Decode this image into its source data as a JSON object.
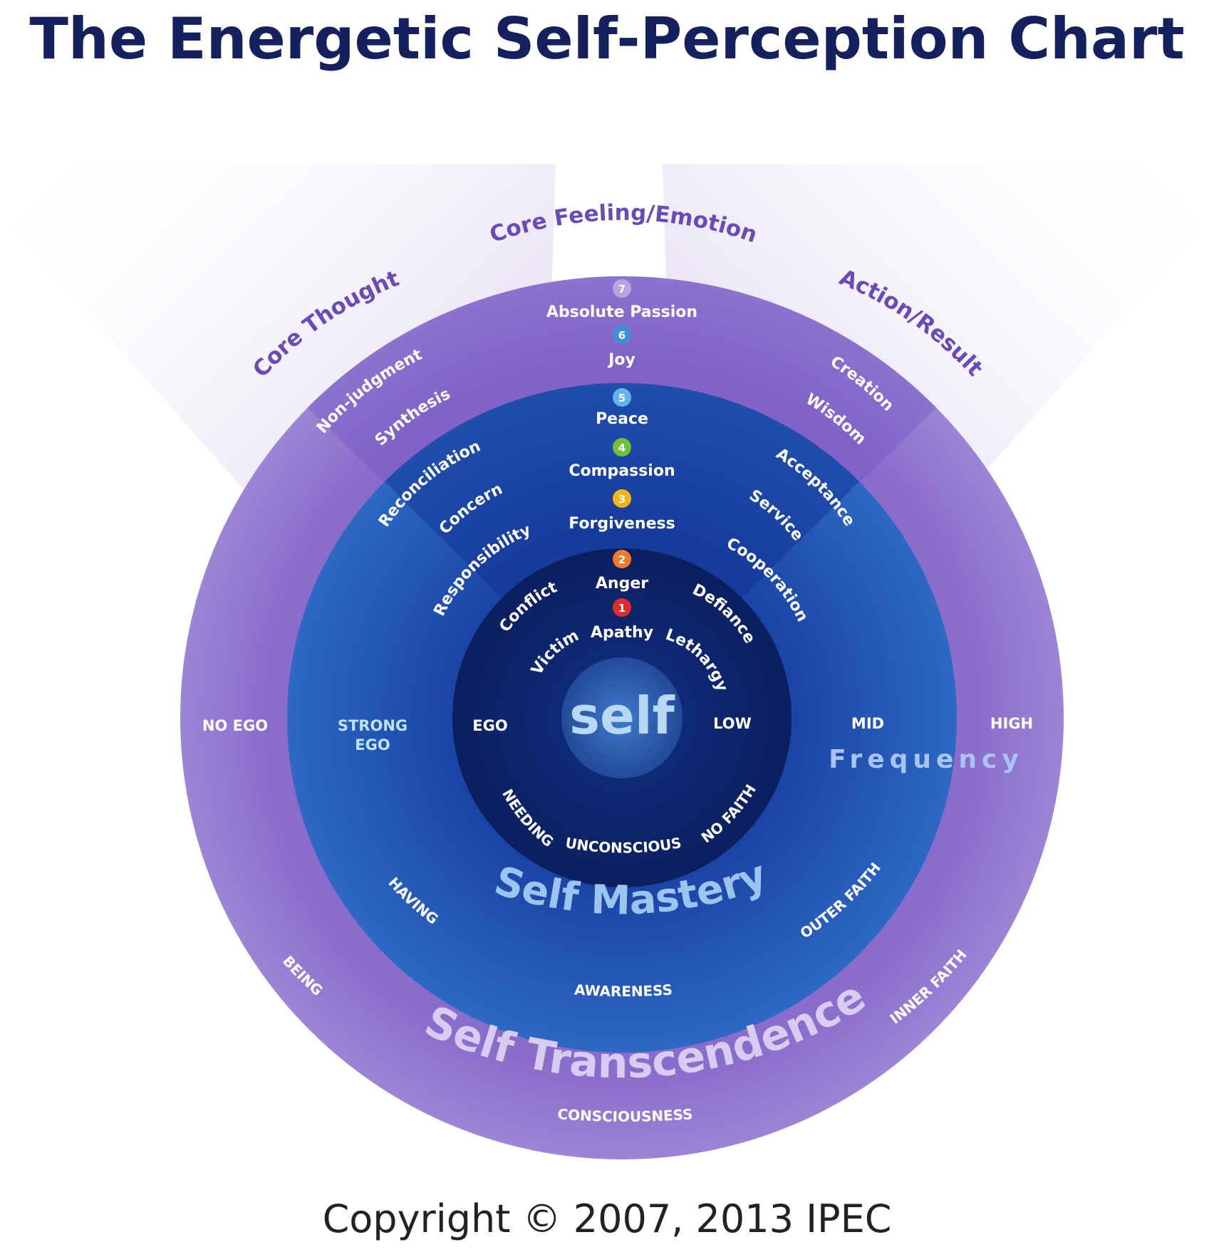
{
  "title": "The Energetic Self-Perception Chart",
  "copyright": "Copyright © 2007, 2013 IPEC",
  "colors": {
    "title": "#15205e",
    "outer_ring": "#9a7fd2",
    "middle_ring": "#2a5cb8",
    "inner_ring": "#0d2468",
    "header_text": "#6a4ab8",
    "light_text": "#ffffff",
    "cyan_text": "#bfe3ff",
    "level_1": "#e02b2b",
    "level_2": "#f07a2a",
    "level_3": "#f2b61b",
    "level_4": "#6ec23a",
    "level_5": "#62b4ea",
    "level_6": "#3f8fd6",
    "level_7": "#b6a6e0"
  },
  "headers": {
    "core_thought": "Core Thought",
    "core_feeling": "Core Feeling/Emotion",
    "action_result": "Action/Result"
  },
  "levels": [
    {
      "number": "1",
      "emotion": "Apathy",
      "thought": "Victim",
      "action": "Lethargy"
    },
    {
      "number": "2",
      "emotion": "Anger",
      "thought": "Conflict",
      "action": "Defiance"
    },
    {
      "number": "3",
      "emotion": "Forgiveness",
      "thought": "Responsibility",
      "action": "Cooperation"
    },
    {
      "number": "4",
      "emotion": "Compassion",
      "thought": "Concern",
      "action": "Service"
    },
    {
      "number": "5",
      "emotion": "Peace",
      "thought": "Reconciliation",
      "action": "Acceptance"
    },
    {
      "number": "6",
      "emotion": "Joy",
      "thought": "Synthesis",
      "action": "Wisdom"
    },
    {
      "number": "7",
      "emotion": "Absolute Passion",
      "thought": "Non-judgment",
      "action": "Creation"
    }
  ],
  "center": "self",
  "inner_ring": {
    "ego": "EGO",
    "frequency": "LOW",
    "needing": "NEEDING",
    "unconscious": "UNCONSCIOUS",
    "faith": "NO FAITH"
  },
  "middle_ring": {
    "ego_line1": "STRONG",
    "ego_line2": "EGO",
    "frequency": "MID",
    "having": "HAVING",
    "awareness": "AWARENESS",
    "faith": "OUTER FAITH",
    "name": "Self Mastery"
  },
  "outer_ring": {
    "ego": "NO EGO",
    "frequency": "HIGH",
    "being": "BEING",
    "consciousness": "CONSCIOUSNESS",
    "faith": "INNER FAITH",
    "name": "Self Transcendence"
  },
  "frequency_label": "Frequency"
}
